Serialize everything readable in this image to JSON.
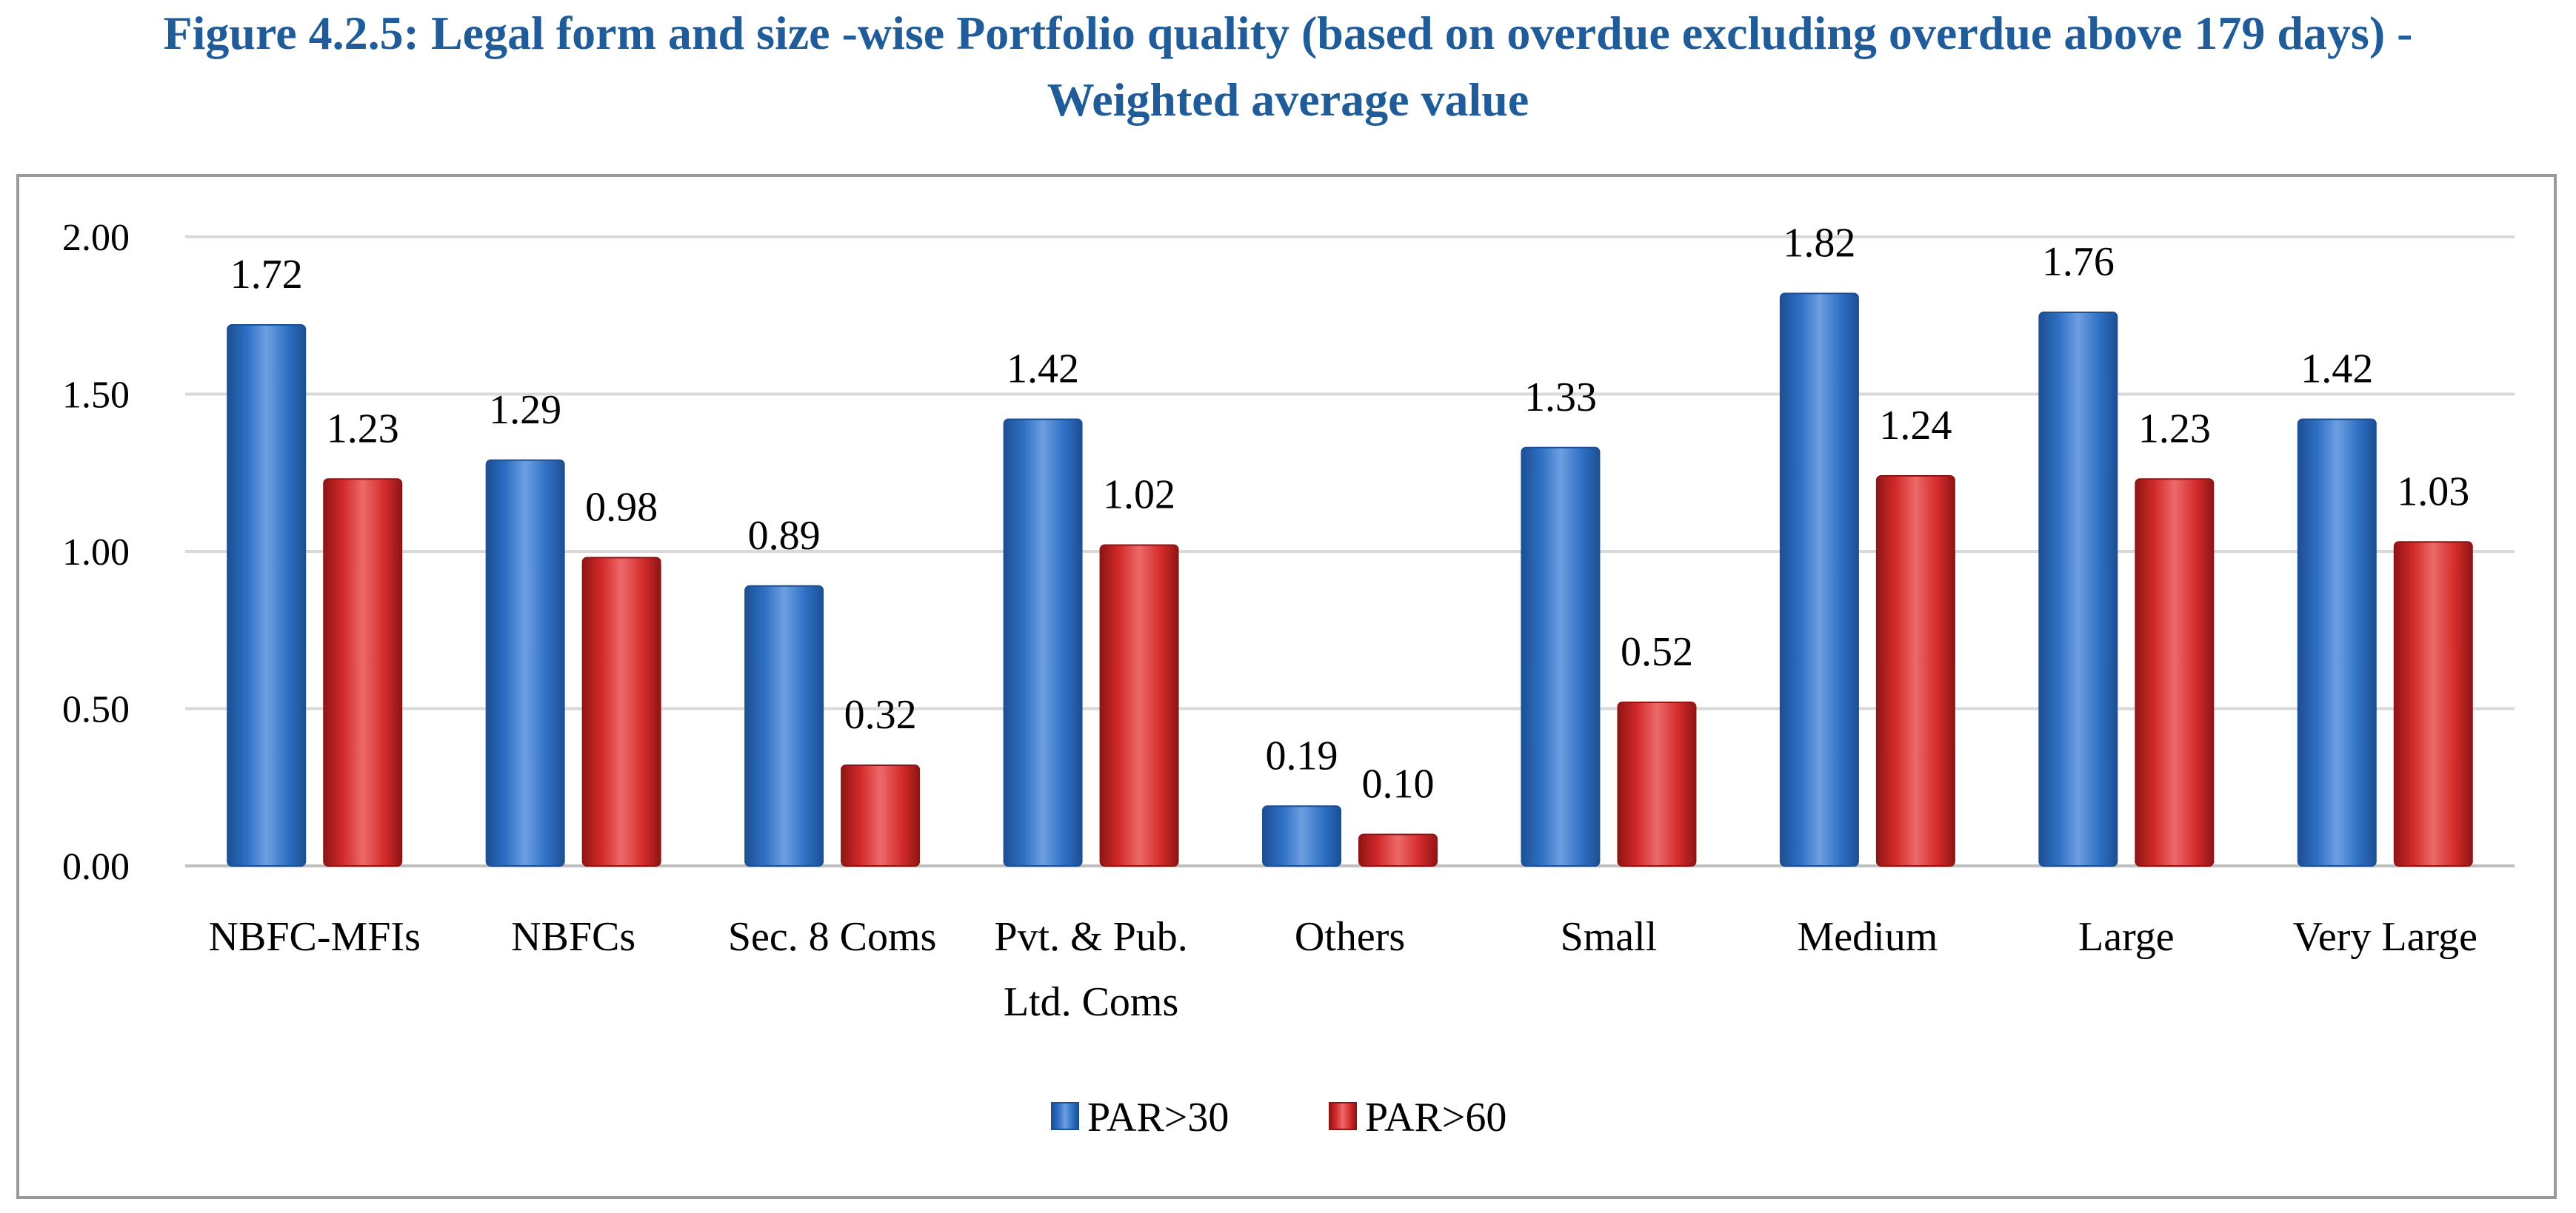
{
  "title_line1": "Figure 4.2.5: Legal form and size -wise Portfolio quality (based on overdue excluding overdue above 179 days) -",
  "title_line2": "Weighted average value",
  "colors": {
    "series1": "#2e6fc4",
    "series1_dark": "#1d4f93",
    "series1_light": "#6d9fe0",
    "series2": "#d42b2b",
    "series2_dark": "#8f1515",
    "series2_light": "#ec6a6a",
    "gridline": "#d9d9d9",
    "axis": "#bfbfbf",
    "title": "#1f5c99"
  },
  "chart_data": {
    "type": "bar",
    "categories": [
      [
        "NBFC-MFIs"
      ],
      [
        "NBFCs"
      ],
      [
        "Sec. 8 Coms"
      ],
      [
        "Pvt. & Pub.",
        "Ltd. Coms"
      ],
      [
        "Others"
      ],
      [
        "Small"
      ],
      [
        "Medium"
      ],
      [
        "Large"
      ],
      [
        "Very Large"
      ]
    ],
    "series": [
      {
        "name": "PAR>30",
        "values": [
          1.72,
          1.29,
          0.89,
          1.42,
          0.19,
          1.33,
          1.82,
          1.76,
          1.42
        ],
        "labels": [
          "1.72",
          "1.29",
          "0.89",
          "1.42",
          "0.19",
          "1.33",
          "1.82",
          "1.76",
          "1.42"
        ]
      },
      {
        "name": "PAR>60",
        "values": [
          1.23,
          0.98,
          0.32,
          1.02,
          0.1,
          0.52,
          1.24,
          1.23,
          1.03
        ],
        "labels": [
          "1.23",
          "0.98",
          "0.32",
          "1.02",
          "0.10",
          "0.52",
          "1.24",
          "1.23",
          "1.03"
        ]
      }
    ],
    "ylim": [
      0,
      2
    ],
    "yticks": [
      0,
      0.5,
      1,
      1.5,
      2
    ],
    "ytick_labels": [
      "0.00",
      "0.50",
      "1.00",
      "1.50",
      "2.00"
    ],
    "grid": true,
    "legend_position": "bottom"
  }
}
